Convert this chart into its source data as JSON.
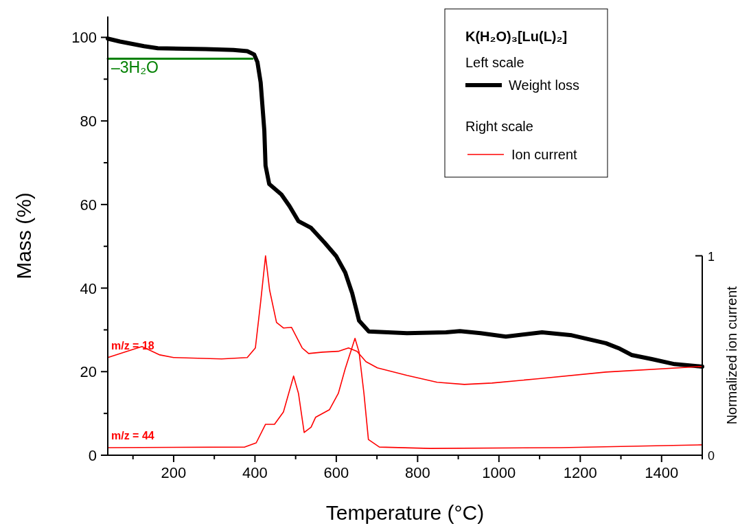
{
  "chart_data": {
    "type": "line",
    "xlabel": "Temperature (°C)",
    "ylabel": "Mass (%)",
    "y2label": "Normalized ion current",
    "legend_title": "K(H₂O)₃[Lu(L)₂]",
    "annotations": [
      "Left scale",
      "Right scale",
      "Ion current"
    ],
    "xlim": [
      38,
      1500
    ],
    "xticks": [
      {
        "value": 100,
        "label": null
      },
      200,
      {
        "value": 300,
        "label": null
      },
      400,
      {
        "value": 500,
        "label": null
      },
      600,
      {
        "value": 700,
        "label": null
      },
      800,
      {
        "value": 900,
        "label": null
      },
      1000,
      {
        "value": 1100,
        "label": null
      },
      1200,
      {
        "value": 1300,
        "label": null
      },
      1400,
      {
        "value": 1500,
        "label": null
      }
    ],
    "ylim": [
      0,
      105
    ],
    "yticks": [
      0,
      {
        "value": 10,
        "label": null
      },
      20,
      {
        "value": 30,
        "label": null
      },
      40,
      {
        "value": 50,
        "label": null
      },
      60,
      {
        "value": 70,
        "label": null
      },
      80,
      {
        "value": 90,
        "label": null
      },
      100
    ],
    "y2lim": [
      0,
      2.2
    ],
    "y2ticks": [
      0,
      1
    ],
    "grid": false,
    "legend": "top right",
    "line_style": "solid",
    "marker": "none",
    "series": [
      {
        "name": "Weight loss",
        "color": "#000000",
        "axis": "y",
        "x": [
          38,
          68,
          127,
          161,
          279,
          347,
          381,
          398,
          406,
          414,
          423,
          426,
          435,
          465,
          485,
          507,
          538,
          571,
          600,
          622,
          639,
          656,
          680,
          774,
          870,
          904,
          955,
          1017,
          1106,
          1179,
          1263,
          1297,
          1326,
          1376,
          1432,
          1500
        ],
        "values": [
          99.7,
          99.0,
          97.9,
          97.4,
          97.2,
          97.0,
          96.7,
          95.9,
          94.1,
          89.2,
          77.7,
          69.3,
          64.9,
          62.4,
          59.6,
          56.0,
          54.4,
          50.9,
          47.6,
          43.7,
          38.8,
          32.2,
          29.6,
          29.2,
          29.4,
          29.7,
          29.2,
          28.4,
          29.4,
          28.7,
          26.8,
          25.5,
          24.0,
          23.0,
          21.8,
          21.2
        ]
      },
      {
        "name": "m/z = 18",
        "color": "#ff0000",
        "axis": "y2",
        "x": [
          38,
          122,
          166,
          200,
          318,
          381,
          401,
          414,
          426,
          436,
          453,
          470,
          490,
          516,
          532,
          566,
          605,
          630,
          651,
          673,
          701,
          774,
          848,
          915,
          983,
          1094,
          1263,
          1500
        ],
        "values": [
          0.49,
          0.545,
          0.503,
          0.49,
          0.483,
          0.49,
          0.538,
          0.769,
          1.0,
          0.828,
          0.666,
          0.638,
          0.641,
          0.538,
          0.51,
          0.517,
          0.521,
          0.538,
          0.521,
          0.469,
          0.438,
          0.4,
          0.366,
          0.355,
          0.362,
          0.383,
          0.417,
          0.445
        ]
      },
      {
        "name": "m/z = 44",
        "color": "#ff0000",
        "axis": "y2",
        "x": [
          38,
          375,
          403,
          426,
          448,
          470,
          495,
          507,
          521,
          538,
          549,
          583,
          605,
          622,
          646,
          656,
          668,
          679,
          706,
          831,
          1152,
          1500
        ],
        "values": [
          0.038,
          0.041,
          0.062,
          0.155,
          0.155,
          0.217,
          0.397,
          0.31,
          0.114,
          0.141,
          0.19,
          0.228,
          0.31,
          0.434,
          0.586,
          0.517,
          0.31,
          0.079,
          0.041,
          0.034,
          0.038,
          0.052
        ]
      },
      {
        "name": "–3H₂O",
        "color": "#008000",
        "axis": "y",
        "x": [
          38,
          394
        ],
        "values": [
          94.9,
          94.9
        ]
      }
    ]
  }
}
